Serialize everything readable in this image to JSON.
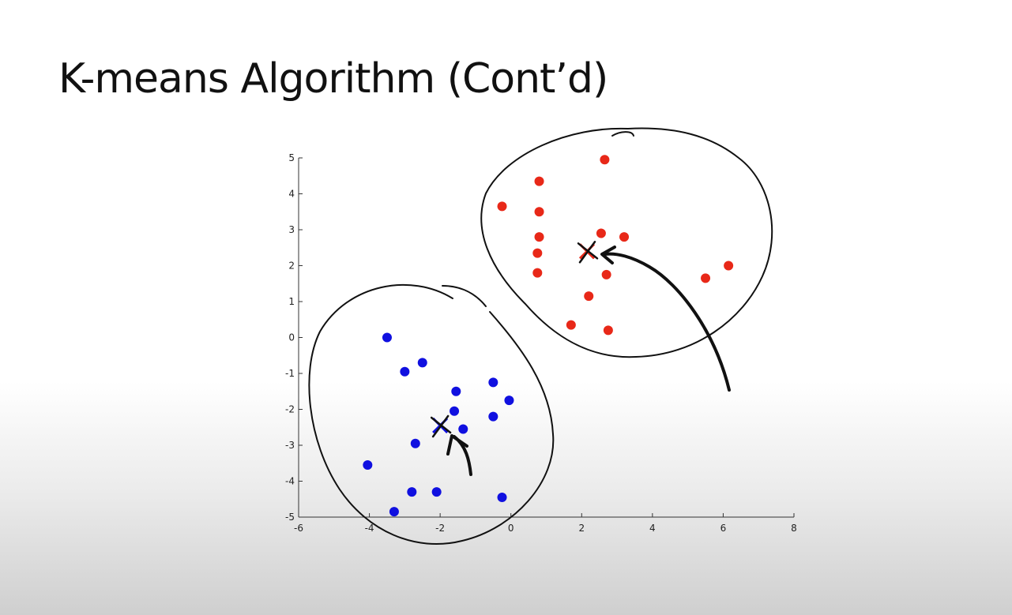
{
  "slide": {
    "title": "K-means Algorithm (Cont’d)"
  },
  "chart_data": {
    "type": "scatter",
    "title": "",
    "xlabel": "",
    "ylabel": "",
    "xlim": [
      -6,
      8
    ],
    "ylim": [
      -5,
      5
    ],
    "x_ticks": [
      -6,
      -4,
      -2,
      0,
      2,
      4,
      6,
      8
    ],
    "y_ticks": [
      5,
      4,
      3,
      2,
      1,
      0,
      -1,
      -2,
      -3,
      -4,
      -5
    ],
    "grid": false,
    "series": [
      {
        "color": "#1010e0",
        "points": [
          [
            -3.5,
            0.0
          ],
          [
            -3.0,
            -0.95
          ],
          [
            -2.5,
            -0.7
          ],
          [
            -1.55,
            -1.5
          ],
          [
            -0.5,
            -1.25
          ],
          [
            -0.05,
            -1.75
          ],
          [
            -1.6,
            -2.05
          ],
          [
            -0.5,
            -2.2
          ],
          [
            -1.35,
            -2.55
          ],
          [
            -2.7,
            -2.95
          ],
          [
            -4.05,
            -3.55
          ],
          [
            -2.8,
            -4.3
          ],
          [
            -2.1,
            -4.3
          ],
          [
            -0.25,
            -4.45
          ],
          [
            -3.3,
            -4.85
          ]
        ],
        "centroid": [
          -2.0,
          -2.45
        ]
      },
      {
        "color": "#e82818",
        "points": [
          [
            2.65,
            4.95
          ],
          [
            0.8,
            4.35
          ],
          [
            -0.25,
            3.65
          ],
          [
            0.8,
            3.5
          ],
          [
            0.8,
            2.8
          ],
          [
            2.55,
            2.9
          ],
          [
            3.2,
            2.8
          ],
          [
            0.75,
            2.35
          ],
          [
            0.75,
            1.8
          ],
          [
            2.7,
            1.75
          ],
          [
            5.5,
            1.65
          ],
          [
            6.15,
            2.0
          ],
          [
            2.2,
            1.15
          ],
          [
            1.7,
            0.35
          ],
          [
            2.75,
            0.2
          ]
        ],
        "centroid": [
          2.15,
          2.4
        ]
      }
    ]
  }
}
